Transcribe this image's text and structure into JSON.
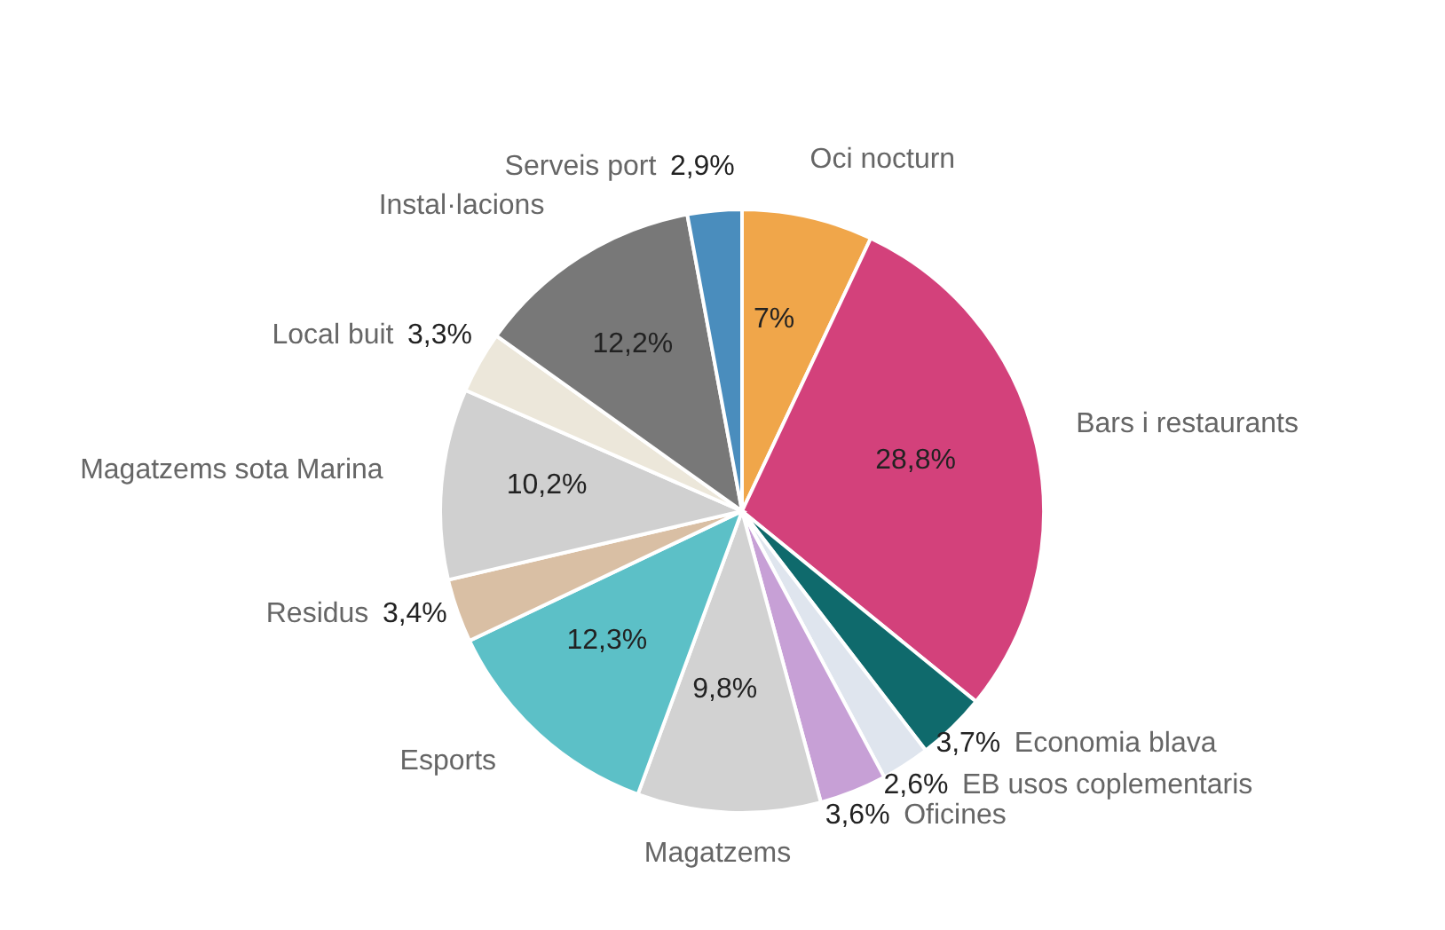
{
  "chart_data": {
    "type": "pie",
    "categories": [
      "Oci nocturn",
      "Bars i restaurants",
      "Economia blava",
      "EB usos coplementaris",
      "Oficines",
      "Magatzems",
      "Esports",
      "Residus",
      "Magatzems sota Marina",
      "Local buit",
      "Instal·lacions",
      "Serveis port"
    ],
    "values": [
      7,
      28.8,
      3.7,
      2.6,
      3.6,
      9.8,
      12.3,
      3.4,
      10.2,
      3.3,
      12.2,
      2.9
    ],
    "value_labels": [
      "7%",
      "28,8%",
      "3,7%",
      "2,6%",
      "3,6%",
      "9,8%",
      "12,3%",
      "3,4%",
      "10,2%",
      "3,3%",
      "12,2%",
      "2,9%"
    ],
    "colors": [
      "#f0a64a",
      "#d3417b",
      "#0f6a6c",
      "#dfe5ee",
      "#c7a0d6",
      "#d2d2d2",
      "#5cc0c7",
      "#d9bfa4",
      "#d0d0d0",
      "#ece7da",
      "#787878",
      "#4a8dbd"
    ]
  }
}
